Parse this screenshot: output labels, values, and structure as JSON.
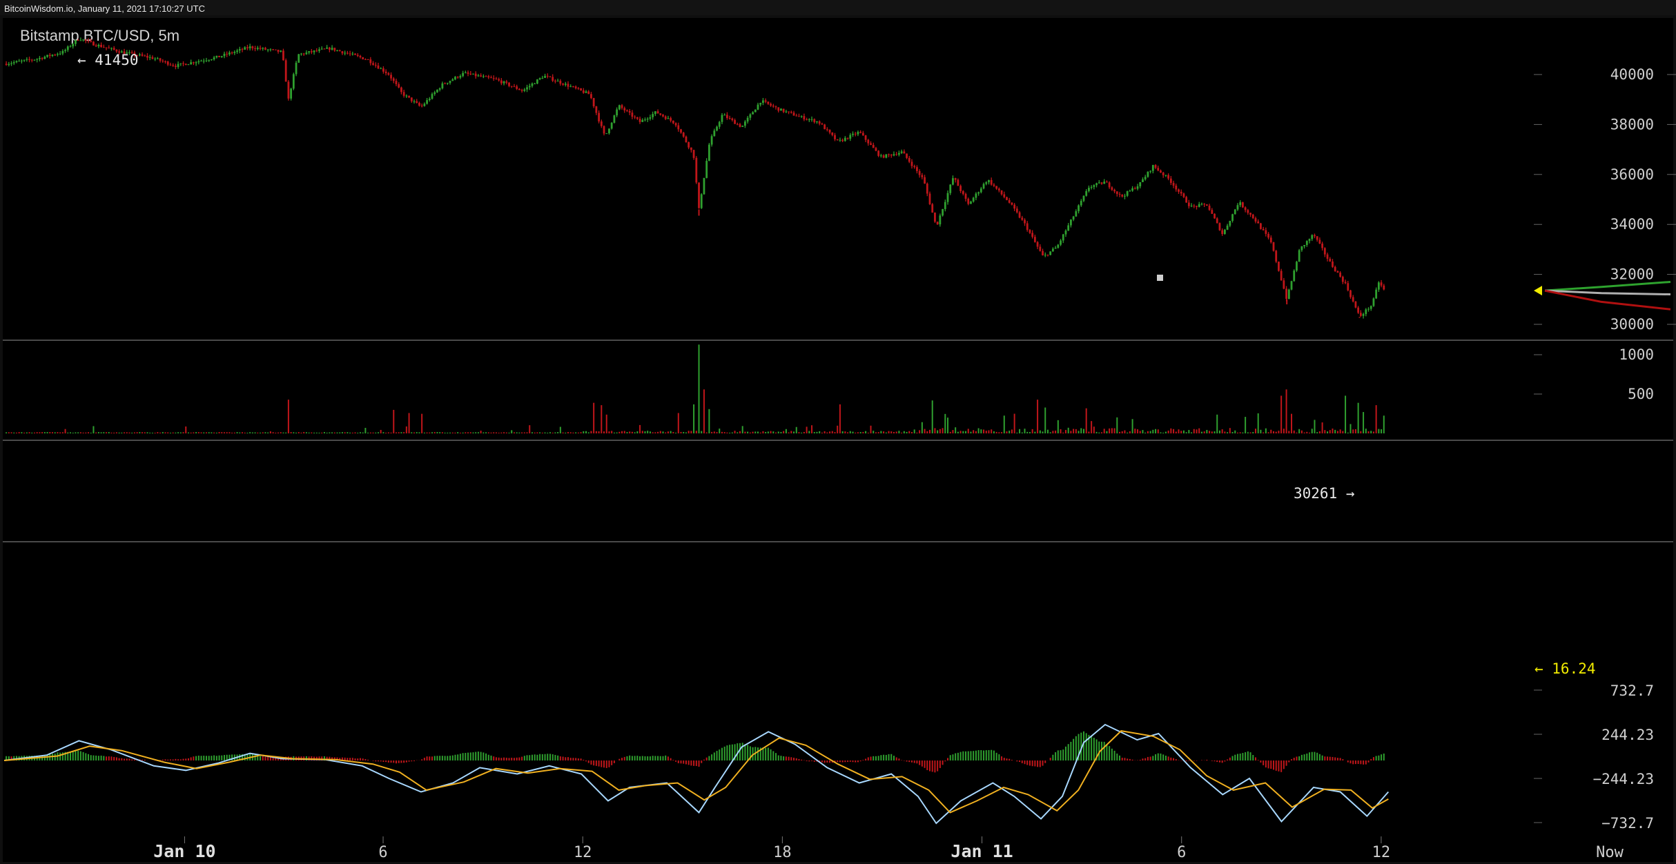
{
  "header": {
    "site_stamp": "BitcoinWisdom.io, January 11, 2021 17:10:27 UTC",
    "title": "Bitstamp BTC/USD, 5m"
  },
  "chart_data": [
    {
      "type": "candlestick",
      "title": "Bitstamp BTC/USD, 5m",
      "ylim": [
        29300,
        41900
      ],
      "y_ticks": [
        "40000",
        "38000",
        "36000",
        "34000",
        "32000",
        "30000"
      ],
      "annotations": [
        {
          "text": "← 41450",
          "value": 41450
        },
        {
          "text": "30261 →",
          "value": 30261
        }
      ],
      "price_path": [
        [
          0,
          40430
        ],
        [
          30,
          40620
        ],
        [
          55,
          40900
        ],
        [
          70,
          41450
        ],
        [
          85,
          41200
        ],
        [
          110,
          40900
        ],
        [
          140,
          40650
        ],
        [
          160,
          40350
        ],
        [
          200,
          40700
        ],
        [
          230,
          41100
        ],
        [
          260,
          40900
        ],
        [
          266,
          39000
        ],
        [
          275,
          40800
        ],
        [
          305,
          41050
        ],
        [
          340,
          40600
        ],
        [
          360,
          40000
        ],
        [
          372,
          39250
        ],
        [
          390,
          38700
        ],
        [
          410,
          39600
        ],
        [
          430,
          40050
        ],
        [
          460,
          39800
        ],
        [
          485,
          39350
        ],
        [
          505,
          39950
        ],
        [
          525,
          39600
        ],
        [
          548,
          39200
        ],
        [
          562,
          37500
        ],
        [
          575,
          38750
        ],
        [
          595,
          38100
        ],
        [
          610,
          38500
        ],
        [
          628,
          38050
        ],
        [
          645,
          36800
        ],
        [
          650,
          34600
        ],
        [
          660,
          37300
        ],
        [
          672,
          38400
        ],
        [
          690,
          37900
        ],
        [
          708,
          38950
        ],
        [
          725,
          38600
        ],
        [
          745,
          38300
        ],
        [
          762,
          38100
        ],
        [
          780,
          37300
        ],
        [
          800,
          37700
        ],
        [
          820,
          36700
        ],
        [
          840,
          36900
        ],
        [
          860,
          35800
        ],
        [
          872,
          33900
        ],
        [
          888,
          35900
        ],
        [
          902,
          34800
        ],
        [
          920,
          35800
        ],
        [
          940,
          34900
        ],
        [
          955,
          34000
        ],
        [
          972,
          32700
        ],
        [
          985,
          33100
        ],
        [
          1000,
          34300
        ],
        [
          1015,
          35500
        ],
        [
          1030,
          35700
        ],
        [
          1045,
          35100
        ],
        [
          1062,
          35600
        ],
        [
          1075,
          36350
        ],
        [
          1090,
          35800
        ],
        [
          1110,
          34700
        ],
        [
          1125,
          34800
        ],
        [
          1140,
          33600
        ],
        [
          1155,
          34900
        ],
        [
          1170,
          34200
        ],
        [
          1185,
          33300
        ],
        [
          1200,
          31000
        ],
        [
          1212,
          33000
        ],
        [
          1225,
          33600
        ],
        [
          1240,
          32500
        ],
        [
          1255,
          31600
        ],
        [
          1268,
          30300
        ],
        [
          1280,
          30800
        ],
        [
          1286,
          31700
        ],
        [
          1292,
          31300
        ]
      ],
      "spike_lows": [
        [
          266,
          39000
        ],
        [
          650,
          34350
        ],
        [
          1200,
          30800
        ],
        [
          1268,
          30261
        ]
      ],
      "depth_arrow": {
        "value": 31350,
        "color": "#f2ec00"
      },
      "depth_lines": [
        {
          "color": "#2ea32e",
          "values": [
            31350,
            31500,
            31700
          ]
        },
        {
          "color": "#b0b0b0",
          "values": [
            31350,
            31250,
            31200
          ]
        },
        {
          "color": "#b01010",
          "values": [
            31350,
            30900,
            30600
          ]
        }
      ]
    },
    {
      "type": "bar",
      "title": "",
      "ylim": [
        0,
        1000
      ],
      "y_ticks": [
        "1000",
        "500"
      ],
      "last_value": "← 16.24",
      "spikes": [
        [
          266,
          420
        ],
        [
          365,
          290
        ],
        [
          380,
          250
        ],
        [
          390,
          240
        ],
        [
          552,
          380
        ],
        [
          558,
          350
        ],
        [
          565,
          230
        ],
        [
          632,
          250
        ],
        [
          645,
          360
        ],
        [
          650,
          1120
        ],
        [
          654,
          550
        ],
        [
          660,
          300
        ],
        [
          782,
          360
        ],
        [
          868,
          410
        ],
        [
          968,
          420
        ],
        [
          975,
          320
        ],
        [
          1012,
          310
        ],
        [
          1136,
          230
        ],
        [
          1195,
          470
        ],
        [
          1199,
          550
        ],
        [
          1205,
          240
        ],
        [
          1255,
          470
        ],
        [
          1268,
          380
        ],
        [
          1285,
          350
        ]
      ]
    },
    {
      "type": "macd",
      "title": "",
      "ylim": [
        -732.7,
        732.7
      ],
      "y_ticks": [
        "732.7",
        "244.23",
        "−244.23",
        "−732.7"
      ],
      "macd_path": [
        [
          0,
          0
        ],
        [
          40,
          60
        ],
        [
          70,
          220
        ],
        [
          100,
          120
        ],
        [
          140,
          -60
        ],
        [
          170,
          -110
        ],
        [
          200,
          -30
        ],
        [
          230,
          80
        ],
        [
          260,
          20
        ],
        [
          300,
          10
        ],
        [
          335,
          -60
        ],
        [
          360,
          -200
        ],
        [
          390,
          -350
        ],
        [
          420,
          -250
        ],
        [
          445,
          -80
        ],
        [
          480,
          -150
        ],
        [
          510,
          -60
        ],
        [
          540,
          -150
        ],
        [
          565,
          -450
        ],
        [
          585,
          -300
        ],
        [
          620,
          -250
        ],
        [
          650,
          -580
        ],
        [
          665,
          -300
        ],
        [
          690,
          150
        ],
        [
          715,
          320
        ],
        [
          740,
          180
        ],
        [
          770,
          -80
        ],
        [
          800,
          -250
        ],
        [
          830,
          -150
        ],
        [
          855,
          -400
        ],
        [
          872,
          -700
        ],
        [
          895,
          -450
        ],
        [
          925,
          -250
        ],
        [
          945,
          -400
        ],
        [
          970,
          -650
        ],
        [
          990,
          -400
        ],
        [
          1010,
          200
        ],
        [
          1030,
          400
        ],
        [
          1060,
          230
        ],
        [
          1080,
          300
        ],
        [
          1110,
          -80
        ],
        [
          1140,
          -380
        ],
        [
          1165,
          -200
        ],
        [
          1195,
          -680
        ],
        [
          1225,
          -300
        ],
        [
          1250,
          -350
        ],
        [
          1275,
          -620
        ],
        [
          1295,
          -350
        ]
      ],
      "signal_path": [
        [
          0,
          0
        ],
        [
          50,
          50
        ],
        [
          80,
          160
        ],
        [
          110,
          110
        ],
        [
          150,
          -20
        ],
        [
          180,
          -90
        ],
        [
          210,
          -20
        ],
        [
          240,
          60
        ],
        [
          270,
          20
        ],
        [
          310,
          10
        ],
        [
          345,
          -40
        ],
        [
          370,
          -130
        ],
        [
          395,
          -330
        ],
        [
          430,
          -240
        ],
        [
          460,
          -90
        ],
        [
          490,
          -140
        ],
        [
          520,
          -90
        ],
        [
          550,
          -120
        ],
        [
          575,
          -330
        ],
        [
          600,
          -280
        ],
        [
          630,
          -250
        ],
        [
          655,
          -440
        ],
        [
          675,
          -300
        ],
        [
          700,
          60
        ],
        [
          725,
          250
        ],
        [
          750,
          170
        ],
        [
          780,
          -40
        ],
        [
          810,
          -210
        ],
        [
          840,
          -180
        ],
        [
          865,
          -330
        ],
        [
          885,
          -580
        ],
        [
          910,
          -450
        ],
        [
          935,
          -300
        ],
        [
          958,
          -380
        ],
        [
          985,
          -560
        ],
        [
          1005,
          -330
        ],
        [
          1025,
          100
        ],
        [
          1045,
          330
        ],
        [
          1075,
          270
        ],
        [
          1100,
          120
        ],
        [
          1125,
          -170
        ],
        [
          1150,
          -330
        ],
        [
          1180,
          -250
        ],
        [
          1205,
          -520
        ],
        [
          1235,
          -320
        ],
        [
          1260,
          -330
        ],
        [
          1280,
          -530
        ],
        [
          1295,
          -430
        ]
      ],
      "histogram_hint": "difference"
    }
  ],
  "x_axis": {
    "labels": [
      {
        "text": "Jan 10",
        "pos": 172,
        "bold": true
      },
      {
        "text": "6",
        "pos": 357
      },
      {
        "text": "12",
        "pos": 543
      },
      {
        "text": "18",
        "pos": 729
      },
      {
        "text": "Jan 11",
        "pos": 915,
        "bold": true
      },
      {
        "text": "6",
        "pos": 1101
      },
      {
        "text": "12",
        "pos": 1287
      },
      {
        "text": "Now",
        "pos": 1500
      }
    ]
  },
  "colors": {
    "up": "#2fa02f",
    "down": "#c0161a",
    "macd": "#a8d8ff",
    "signal": "#f0b020",
    "accent": "#f2ec00"
  }
}
